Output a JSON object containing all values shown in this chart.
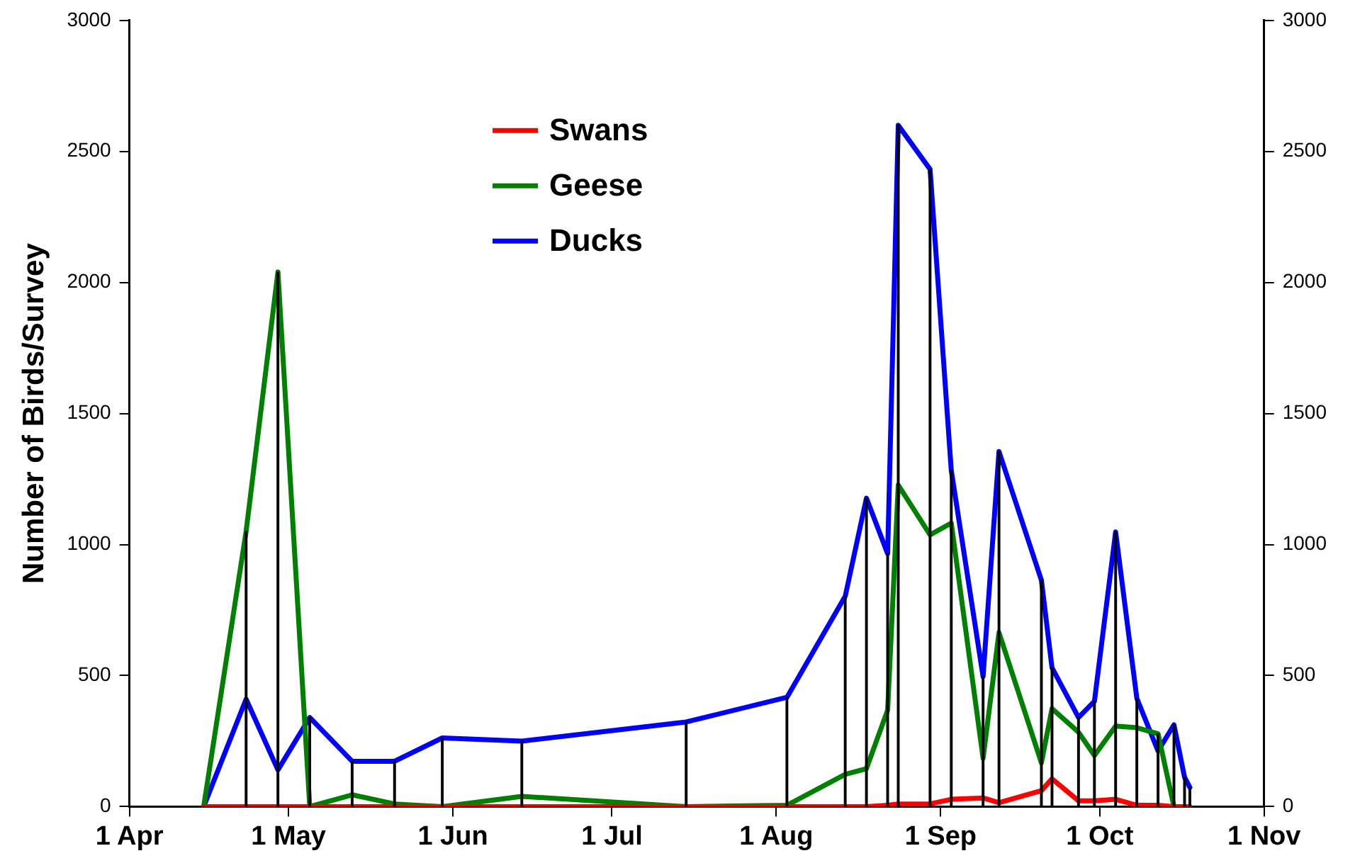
{
  "chart_data": {
    "type": "line",
    "ylabel": "Number of Birds/Survey",
    "x": [
      "--04-15",
      "--04-23",
      "--04-29",
      "--05-05",
      "--05-13",
      "--05-21",
      "--05-30",
      "--06-14",
      "--07-15",
      "--08-03",
      "--08-14",
      "--08-18",
      "--08-22",
      "--08-24",
      "--08-30",
      "--09-03",
      "--09-09",
      "--09-12",
      "--09-20",
      "--09-22",
      "--09-27",
      "--09-30",
      "--10-04",
      "--10-08",
      "--10-12",
      "--10-15",
      "--10-17",
      "--10-18"
    ],
    "series": [
      {
        "name": "Swans",
        "color": "#ff0000",
        "values": [
          0,
          0,
          0,
          0,
          0,
          0,
          0,
          0,
          0,
          0,
          0,
          0,
          5,
          10,
          10,
          28,
          33,
          15,
          61,
          106,
          22,
          22,
          28,
          5,
          5,
          0,
          0,
          0
        ]
      },
      {
        "name": "Geese",
        "color": "#008000",
        "values": [
          0,
          1050,
          2040,
          0,
          45,
          10,
          0,
          39,
          0,
          5,
          123,
          145,
          368,
          1227,
          1037,
          1082,
          184,
          664,
          167,
          374,
          284,
          195,
          307,
          301,
          278,
          0,
          0,
          0
        ]
      },
      {
        "name": "Ducks",
        "color": "#0000ff",
        "values": [
          0,
          410,
          140,
          340,
          173,
          173,
          262,
          250,
          323,
          417,
          803,
          1177,
          965,
          2600,
          2432,
          1283,
          496,
          1355,
          864,
          530,
          340,
          402,
          1048,
          413,
          212,
          312,
          112,
          73
        ]
      },
      {
        "type": "bar",
        "color": "#000000",
        "values": [
          0,
          1050,
          2040,
          340,
          173,
          173,
          262,
          250,
          323,
          417,
          803,
          1177,
          965,
          2600,
          2432,
          1283,
          496,
          1355,
          864,
          530,
          340,
          402,
          1048,
          413,
          278,
          312,
          112,
          73
        ]
      }
    ],
    "xlim": [
      "--04-01",
      "--11-01"
    ],
    "xticks": [
      {
        "value": "--04-01",
        "label": "1 Apr"
      },
      {
        "value": "--05-01",
        "label": "1 May"
      },
      {
        "value": "--06-01",
        "label": "1 Jun"
      },
      {
        "value": "--07-01",
        "label": "1 Jul"
      },
      {
        "value": "--08-01",
        "label": "1 Aug"
      },
      {
        "value": "--09-01",
        "label": "1 Sep"
      },
      {
        "value": "--10-01",
        "label": "1 Oct"
      },
      {
        "value": "--11-01",
        "label": "1 Nov"
      }
    ],
    "ylim": [
      0,
      3000
    ],
    "yticks": [
      0,
      500,
      1000,
      1500,
      2000,
      2500,
      3000
    ],
    "y2lim": [
      0,
      3000
    ],
    "y2ticks": [
      0,
      500,
      1000,
      1500,
      2000,
      2500,
      3000
    ],
    "grid": false,
    "legend": "top left",
    "marker": "none",
    "line_style": "solid"
  }
}
